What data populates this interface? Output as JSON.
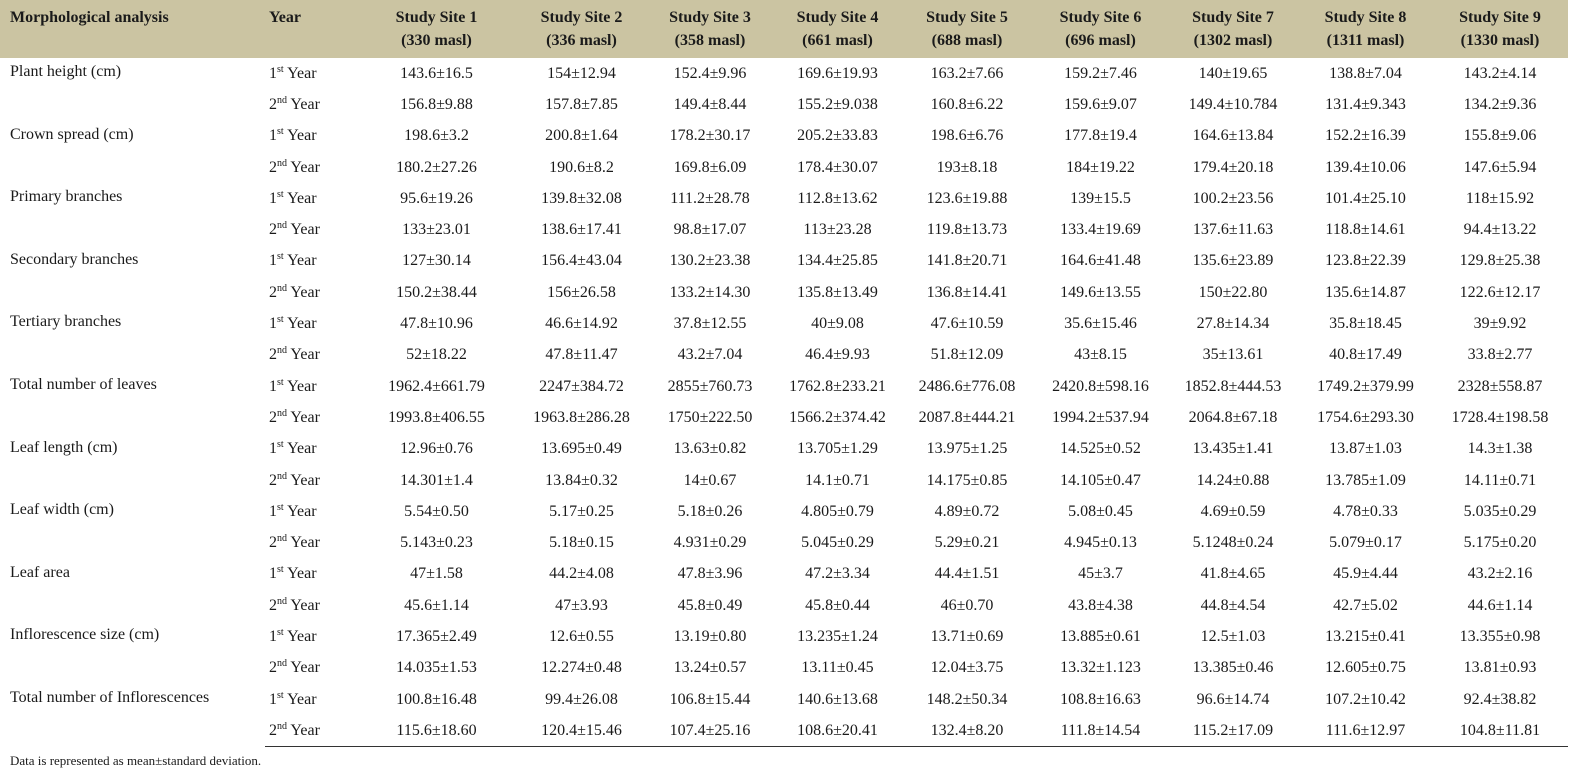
{
  "table": {
    "header": {
      "trait": "Morphological analysis",
      "year": "Year",
      "sites": [
        {
          "name": "Study Site 1",
          "elevation": "(330 masl)"
        },
        {
          "name": "Study Site 2",
          "elevation": "(336 masl)"
        },
        {
          "name": "Study Site 3",
          "elevation": "(358 masl)"
        },
        {
          "name": "Study Site 4",
          "elevation": "(661 masl)"
        },
        {
          "name": "Study Site 5",
          "elevation": "(688 masl)"
        },
        {
          "name": "Study Site 6",
          "elevation": "(696 masl)"
        },
        {
          "name": "Study Site 7",
          "elevation": "(1302 masl)"
        },
        {
          "name": "Study Site 8",
          "elevation": "(1311 masl)"
        },
        {
          "name": "Study Site 9",
          "elevation": "(1330 masl)"
        }
      ]
    },
    "groups": [
      {
        "trait": "Plant height (cm)",
        "rows": [
          {
            "year": {
              "num": "1",
              "sup": "st",
              "word": "Year"
            },
            "values": [
              "143.6±16.5",
              "154±12.94",
              "152.4±9.96",
              "169.6±19.93",
              "163.2±7.66",
              "159.2±7.46",
              "140±19.65",
              "138.8±7.04",
              "143.2±4.14"
            ]
          },
          {
            "year": {
              "num": "2",
              "sup": "nd",
              "word": "Year"
            },
            "values": [
              "156.8±9.88",
              "157.8±7.85",
              "149.4±8.44",
              "155.2±9.038",
              "160.8±6.22",
              "159.6±9.07",
              "149.4±10.784",
              "131.4±9.343",
              "134.2±9.36"
            ]
          }
        ]
      },
      {
        "trait": "Crown spread (cm)",
        "rows": [
          {
            "year": {
              "num": "1",
              "sup": "st",
              "word": "Year"
            },
            "values": [
              "198.6±3.2",
              "200.8±1.64",
              "178.2±30.17",
              "205.2±33.83",
              "198.6±6.76",
              "177.8±19.4",
              "164.6±13.84",
              "152.2±16.39",
              "155.8±9.06"
            ]
          },
          {
            "year": {
              "num": "2",
              "sup": "nd",
              "word": "Year"
            },
            "values": [
              "180.2±27.26",
              "190.6±8.2",
              "169.8±6.09",
              "178.4±30.07",
              "193±8.18",
              "184±19.22",
              "179.4±20.18",
              "139.4±10.06",
              "147.6±5.94"
            ]
          }
        ]
      },
      {
        "trait": "Primary branches",
        "rows": [
          {
            "year": {
              "num": "1",
              "sup": "st",
              "word": "Year"
            },
            "values": [
              "95.6±19.26",
              "139.8±32.08",
              "111.2±28.78",
              "112.8±13.62",
              "123.6±19.88",
              "139±15.5",
              "100.2±23.56",
              "101.4±25.10",
              "118±15.92"
            ]
          },
          {
            "year": {
              "num": "2",
              "sup": "nd",
              "word": "Year"
            },
            "values": [
              "133±23.01",
              "138.6±17.41",
              "98.8±17.07",
              "113±23.28",
              "119.8±13.73",
              "133.4±19.69",
              "137.6±11.63",
              "118.8±14.61",
              "94.4±13.22"
            ]
          }
        ]
      },
      {
        "trait": "Secondary branches",
        "rows": [
          {
            "year": {
              "num": "1",
              "sup": "st",
              "word": "Year"
            },
            "values": [
              "127±30.14",
              "156.4±43.04",
              "130.2±23.38",
              "134.4±25.85",
              "141.8±20.71",
              "164.6±41.48",
              "135.6±23.89",
              "123.8±22.39",
              "129.8±25.38"
            ]
          },
          {
            "year": {
              "num": "2",
              "sup": "nd",
              "word": "Year"
            },
            "values": [
              "150.2±38.44",
              "156±26.58",
              "133.2±14.30",
              "135.8±13.49",
              "136.8±14.41",
              "149.6±13.55",
              "150±22.80",
              "135.6±14.87",
              "122.6±12.17"
            ]
          }
        ]
      },
      {
        "trait": "Tertiary branches",
        "rows": [
          {
            "year": {
              "num": "1",
              "sup": "st",
              "word": "Year"
            },
            "values": [
              "47.8±10.96",
              "46.6±14.92",
              "37.8±12.55",
              "40±9.08",
              "47.6±10.59",
              "35.6±15.46",
              "27.8±14.34",
              "35.8±18.45",
              "39±9.92"
            ]
          },
          {
            "year": {
              "num": "2",
              "sup": "nd",
              "word": "Year"
            },
            "values": [
              "52±18.22",
              "47.8±11.47",
              "43.2±7.04",
              "46.4±9.93",
              "51.8±12.09",
              "43±8.15",
              "35±13.61",
              "40.8±17.49",
              "33.8±2.77"
            ]
          }
        ]
      },
      {
        "trait": "Total number of leaves",
        "rows": [
          {
            "year": {
              "num": "1",
              "sup": "st",
              "word": "Year"
            },
            "values": [
              "1962.4±661.79",
              "2247±384.72",
              "2855±760.73",
              "1762.8±233.21",
              "2486.6±776.08",
              "2420.8±598.16",
              "1852.8±444.53",
              "1749.2±379.99",
              "2328±558.87"
            ]
          },
          {
            "year": {
              "num": "2",
              "sup": "nd",
              "word": "Year"
            },
            "values": [
              "1993.8±406.55",
              "1963.8±286.28",
              "1750±222.50",
              "1566.2±374.42",
              "2087.8±444.21",
              "1994.2±537.94",
              "2064.8±67.18",
              "1754.6±293.30",
              "1728.4±198.58"
            ]
          }
        ]
      },
      {
        "trait": "Leaf length (cm)",
        "rows": [
          {
            "year": {
              "num": "1",
              "sup": "st",
              "word": "Year"
            },
            "values": [
              "12.96±0.76",
              "13.695±0.49",
              "13.63±0.82",
              "13.705±1.29",
              "13.975±1.25",
              "14.525±0.52",
              "13.435±1.41",
              "13.87±1.03",
              "14.3±1.38"
            ]
          },
          {
            "year": {
              "num": "2",
              "sup": "nd",
              "word": "Year"
            },
            "values": [
              "14.301±1.4",
              "13.84±0.32",
              "14±0.67",
              "14.1±0.71",
              "14.175±0.85",
              "14.105±0.47",
              "14.24±0.88",
              "13.785±1.09",
              "14.11±0.71"
            ]
          }
        ]
      },
      {
        "trait": "Leaf width (cm)",
        "rows": [
          {
            "year": {
              "num": "1",
              "sup": "st",
              "word": "Year"
            },
            "values": [
              "5.54±0.50",
              "5.17±0.25",
              "5.18±0.26",
              "4.805±0.79",
              "4.89±0.72",
              "5.08±0.45",
              "4.69±0.59",
              "4.78±0.33",
              "5.035±0.29"
            ]
          },
          {
            "year": {
              "num": "2",
              "sup": "nd",
              "word": "Year"
            },
            "values": [
              "5.143±0.23",
              "5.18±0.15",
              "4.931±0.29",
              "5.045±0.29",
              "5.29±0.21",
              "4.945±0.13",
              "5.1248±0.24",
              "5.079±0.17",
              "5.175±0.20"
            ]
          }
        ]
      },
      {
        "trait": "Leaf area",
        "rows": [
          {
            "year": {
              "num": "1",
              "sup": "st",
              "word": "Year"
            },
            "values": [
              "47±1.58",
              "44.2±4.08",
              "47.8±3.96",
              "47.2±3.34",
              "44.4±1.51",
              "45±3.7",
              "41.8±4.65",
              "45.9±4.44",
              "43.2±2.16"
            ]
          },
          {
            "year": {
              "num": "2",
              "sup": "nd",
              "word": "Year"
            },
            "values": [
              "45.6±1.14",
              "47±3.93",
              "45.8±0.49",
              "45.8±0.44",
              "46±0.70",
              "43.8±4.38",
              "44.8±4.54",
              "42.7±5.02",
              "44.6±1.14"
            ]
          }
        ]
      },
      {
        "trait": "Inflorescence size (cm)",
        "rows": [
          {
            "year": {
              "num": "1",
              "sup": "st",
              "word": "Year"
            },
            "values": [
              "17.365±2.49",
              "12.6±0.55",
              "13.19±0.80",
              "13.235±1.24",
              "13.71±0.69",
              "13.885±0.61",
              "12.5±1.03",
              "13.215±0.41",
              "13.355±0.98"
            ]
          },
          {
            "year": {
              "num": "2",
              "sup": "nd",
              "word": "Year"
            },
            "values": [
              "14.035±1.53",
              "12.274±0.48",
              "13.24±0.57",
              "13.11±0.45",
              "12.04±3.75",
              "13.32±1.123",
              "13.385±0.46",
              "12.605±0.75",
              "13.81±0.93"
            ]
          }
        ]
      },
      {
        "trait": "Total number of Inflorescences",
        "rows": [
          {
            "year": {
              "num": "1",
              "sup": "st",
              "word": "Year"
            },
            "values": [
              "100.8±16.48",
              "99.4±26.08",
              "106.8±15.44",
              "140.6±13.68",
              "148.2±50.34",
              "108.8±16.63",
              "96.6±14.74",
              "107.2±10.42",
              "92.4±38.82"
            ]
          },
          {
            "year": {
              "num": "2",
              "sup": "nd",
              "word": "Year"
            },
            "values": [
              "115.6±18.60",
              "120.4±15.46",
              "107.4±25.16",
              "108.6±20.41",
              "132.4±8.20",
              "111.8±14.54",
              "115.2±17.09",
              "111.6±12.97",
              "104.8±11.81"
            ]
          }
        ]
      }
    ],
    "footnote": "Data is represented as mean±standard deviation."
  }
}
